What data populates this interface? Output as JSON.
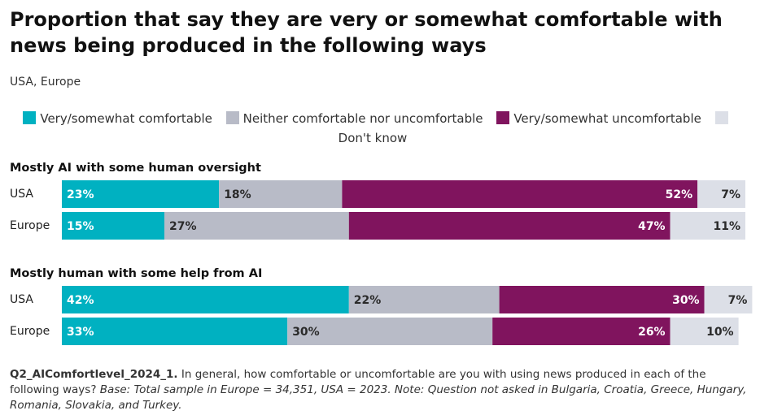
{
  "title": "Proportion that say they are very or somewhat comfortable with news being produced in the following ways",
  "subtitle": "USA, Europe",
  "footnote": {
    "code": "Q2_AIComfortlevel_2024_1.",
    "question": "In general, how comfortable or uncomfortable are you with using news produced in each of the following ways?",
    "base": "Base: Total sample in Europe = 34,351, USA = 2023. Note: Question not asked in Bulgaria, Croatia, Greece, Hungary, Romania, Slovakia, and Turkey."
  },
  "chart_data": {
    "type": "stacked_bar_horizontal",
    "groups": [
      {
        "title": "Mostly AI with some human oversight",
        "categories": [
          "USA",
          "Europe"
        ]
      },
      {
        "title": "Mostly human with some help from AI",
        "categories": [
          "USA",
          "Europe"
        ]
      }
    ],
    "xlim": [
      0,
      100
    ],
    "series": [
      {
        "name": "Very/somewhat comfortable",
        "color": "#00b1c1",
        "label_color": "#ffffff",
        "values": [
          23,
          15,
          42,
          33
        ],
        "value_labels": [
          "23%",
          "15%",
          "42%",
          "33%"
        ]
      },
      {
        "name": "Neither comfortable nor uncomfortable",
        "color": "#b8bbc7",
        "label_color": "#2a2a2a",
        "values": [
          18,
          27,
          22,
          30
        ],
        "value_labels": [
          "18%",
          "27%",
          "22%",
          "30%"
        ]
      },
      {
        "name": "Very/somewhat uncomfortable",
        "color": "#80145e",
        "label_color": "#ffffff",
        "values": [
          52,
          47,
          30,
          26
        ],
        "value_labels": [
          "52%",
          "47%",
          "30%",
          "26%"
        ]
      },
      {
        "name": "Don't know",
        "color": "#dcdfe7",
        "label_color": "#2a2a2a",
        "values": [
          7,
          11,
          7,
          10
        ],
        "value_labels": [
          "7%",
          "11%",
          "7%",
          "10%"
        ]
      }
    ]
  }
}
